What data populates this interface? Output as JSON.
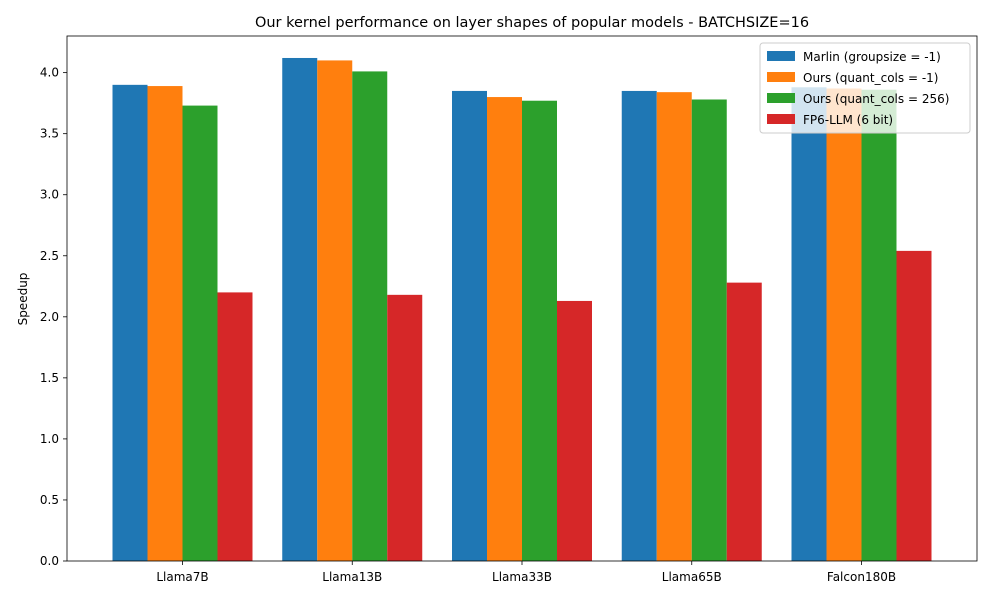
{
  "chart_data": {
    "type": "bar",
    "title": "Our kernel performance on layer shapes of popular models - BATCHSIZE=16",
    "xlabel": "",
    "ylabel": "Speedup",
    "ylim": [
      0,
      4.3
    ],
    "yticks": [
      "0.0",
      "0.5",
      "1.0",
      "1.5",
      "2.0",
      "2.5",
      "3.0",
      "3.5",
      "4.0"
    ],
    "categories": [
      "Llama7B",
      "Llama13B",
      "Llama33B",
      "Llama65B",
      "Falcon180B"
    ],
    "series": [
      {
        "name": "Marlin (groupsize = -1)",
        "color": "#1f77b4",
        "values": [
          3.9,
          4.12,
          3.85,
          3.85,
          3.88
        ]
      },
      {
        "name": "Ours (quant_cols = -1)",
        "color": "#ff7f0e",
        "values": [
          3.89,
          4.1,
          3.8,
          3.84,
          3.87
        ]
      },
      {
        "name": "Ours (quant_cols = 256)",
        "color": "#2ca02c",
        "values": [
          3.73,
          4.01,
          3.77,
          3.78,
          3.86
        ]
      },
      {
        "name": "FP6-LLM (6 bit)",
        "color": "#d62728",
        "values": [
          2.2,
          2.18,
          2.13,
          2.28,
          2.54
        ]
      }
    ],
    "legend_position": "top-right",
    "grid": false
  }
}
